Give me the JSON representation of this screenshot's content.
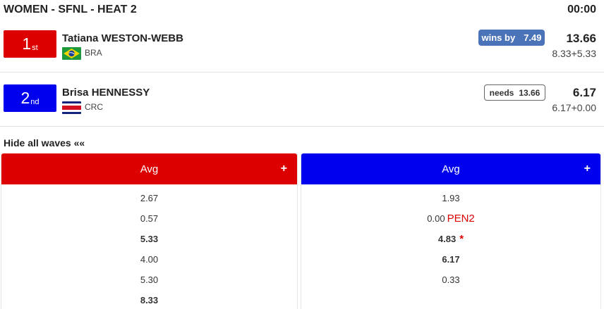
{
  "header": {
    "title": "WOMEN - SFNL - HEAT 2",
    "clock": "00:00"
  },
  "athletes": [
    {
      "place_number": "1",
      "place_suffix": "st",
      "name": "Tatiana WESTON-WEBB",
      "country": "BRA",
      "flag_icon": "brazil-flag-icon",
      "color": "#dd0000",
      "status_label": "wins by",
      "status_value": "7.49",
      "total": "13.66",
      "breakdown": "8.33+5.33"
    },
    {
      "place_number": "2",
      "place_suffix": "nd",
      "name": "Brisa HENNESSY",
      "country": "CRC",
      "flag_icon": "costa-rica-flag-icon",
      "color": "#0000ee",
      "status_label": "needs",
      "status_value": "13.66",
      "total": "6.17",
      "breakdown": "6.17+0.00"
    }
  ],
  "waves_toggle": "Hide all waves ««",
  "columns": [
    {
      "header": "Avg",
      "expand": "+",
      "waves": [
        {
          "score": "2.67",
          "best": false
        },
        {
          "score": "0.57",
          "best": false
        },
        {
          "score": "5.33",
          "best": true
        },
        {
          "score": "4.00",
          "best": false
        },
        {
          "score": "5.30",
          "best": false
        },
        {
          "score": "8.33",
          "best": true
        }
      ]
    },
    {
      "header": "Avg",
      "expand": "+",
      "waves": [
        {
          "score": "1.93",
          "best": false
        },
        {
          "score": "0.00",
          "best": false,
          "penalty": "PEN2"
        },
        {
          "score": "4.83",
          "best": true,
          "mark": "*"
        },
        {
          "score": "6.17",
          "best": true
        },
        {
          "score": "0.33",
          "best": false
        }
      ]
    }
  ]
}
